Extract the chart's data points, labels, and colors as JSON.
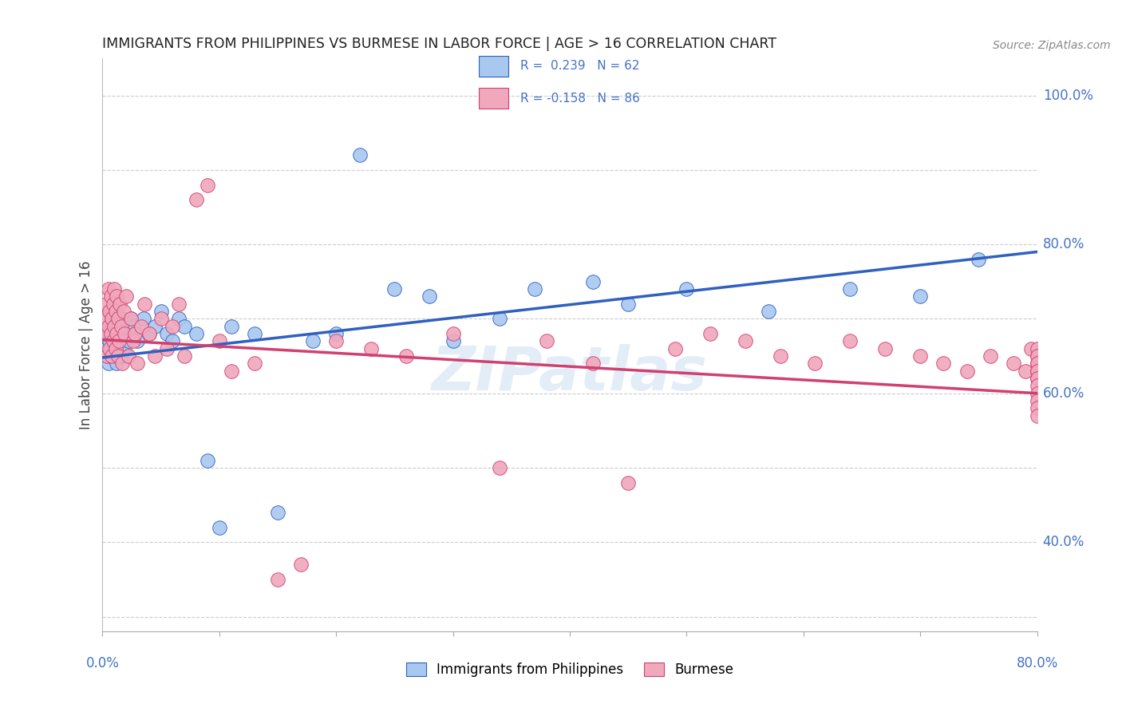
{
  "title": "IMMIGRANTS FROM PHILIPPINES VS BURMESE IN LABOR FORCE | AGE > 16 CORRELATION CHART",
  "source": "Source: ZipAtlas.com",
  "ylabel": "In Labor Force | Age > 16",
  "yticks": [
    "40.0%",
    "60.0%",
    "80.0%",
    "100.0%"
  ],
  "ytick_vals": [
    0.4,
    0.6,
    0.8,
    1.0
  ],
  "xlim": [
    0.0,
    0.8
  ],
  "ylim": [
    0.28,
    1.05
  ],
  "r_philippines": 0.239,
  "n_philippines": 62,
  "r_burmese": -0.158,
  "n_burmese": 86,
  "color_philippines": "#A8C8F0",
  "color_burmese": "#F0A8BC",
  "trendline_color_philippines": "#3060C0",
  "trendline_color_burmese": "#D04070",
  "watermark": "ZIPatlas",
  "trend_ph_x0": 0.0,
  "trend_ph_y0": 0.648,
  "trend_ph_x1": 0.8,
  "trend_ph_y1": 0.79,
  "trend_bu_x0": 0.0,
  "trend_bu_y0": 0.672,
  "trend_bu_x1": 0.8,
  "trend_bu_y1": 0.6,
  "philippines_x": [
    0.002,
    0.003,
    0.004,
    0.005,
    0.005,
    0.006,
    0.006,
    0.007,
    0.007,
    0.008,
    0.008,
    0.009,
    0.009,
    0.01,
    0.01,
    0.011,
    0.011,
    0.012,
    0.012,
    0.013,
    0.013,
    0.014,
    0.015,
    0.016,
    0.017,
    0.018,
    0.019,
    0.02,
    0.022,
    0.024,
    0.026,
    0.028,
    0.03,
    0.035,
    0.04,
    0.045,
    0.05,
    0.055,
    0.06,
    0.065,
    0.07,
    0.08,
    0.09,
    0.1,
    0.11,
    0.13,
    0.15,
    0.18,
    0.2,
    0.22,
    0.25,
    0.28,
    0.3,
    0.34,
    0.37,
    0.42,
    0.45,
    0.5,
    0.57,
    0.64,
    0.7,
    0.75
  ],
  "philippines_y": [
    0.67,
    0.66,
    0.65,
    0.68,
    0.64,
    0.67,
    0.69,
    0.66,
    0.68,
    0.65,
    0.7,
    0.67,
    0.69,
    0.66,
    0.68,
    0.65,
    0.67,
    0.7,
    0.64,
    0.69,
    0.67,
    0.66,
    0.68,
    0.65,
    0.7,
    0.67,
    0.66,
    0.68,
    0.67,
    0.7,
    0.69,
    0.68,
    0.67,
    0.7,
    0.68,
    0.69,
    0.71,
    0.68,
    0.67,
    0.7,
    0.69,
    0.68,
    0.51,
    0.42,
    0.69,
    0.68,
    0.44,
    0.67,
    0.68,
    0.92,
    0.74,
    0.73,
    0.67,
    0.7,
    0.74,
    0.75,
    0.72,
    0.74,
    0.71,
    0.74,
    0.73,
    0.78
  ],
  "burmese_x": [
    0.001,
    0.002,
    0.003,
    0.004,
    0.005,
    0.005,
    0.006,
    0.006,
    0.007,
    0.007,
    0.008,
    0.008,
    0.009,
    0.009,
    0.01,
    0.01,
    0.011,
    0.011,
    0.012,
    0.012,
    0.013,
    0.013,
    0.014,
    0.015,
    0.016,
    0.017,
    0.018,
    0.019,
    0.02,
    0.022,
    0.024,
    0.026,
    0.028,
    0.03,
    0.033,
    0.036,
    0.04,
    0.045,
    0.05,
    0.055,
    0.06,
    0.065,
    0.07,
    0.08,
    0.09,
    0.1,
    0.11,
    0.13,
    0.15,
    0.17,
    0.2,
    0.23,
    0.26,
    0.3,
    0.34,
    0.38,
    0.42,
    0.45,
    0.49,
    0.52,
    0.55,
    0.58,
    0.61,
    0.64,
    0.67,
    0.7,
    0.72,
    0.74,
    0.76,
    0.78,
    0.79,
    0.795,
    0.8,
    0.8,
    0.8,
    0.8,
    0.8,
    0.8,
    0.8,
    0.8,
    0.8,
    0.8,
    0.8,
    0.8,
    0.8,
    0.8
  ],
  "burmese_y": [
    0.7,
    0.68,
    0.72,
    0.65,
    0.69,
    0.74,
    0.66,
    0.71,
    0.68,
    0.73,
    0.65,
    0.7,
    0.67,
    0.72,
    0.69,
    0.74,
    0.66,
    0.71,
    0.68,
    0.73,
    0.65,
    0.7,
    0.67,
    0.72,
    0.69,
    0.64,
    0.71,
    0.68,
    0.73,
    0.65,
    0.7,
    0.67,
    0.68,
    0.64,
    0.69,
    0.72,
    0.68,
    0.65,
    0.7,
    0.66,
    0.69,
    0.72,
    0.65,
    0.86,
    0.88,
    0.67,
    0.63,
    0.64,
    0.35,
    0.37,
    0.67,
    0.66,
    0.65,
    0.68,
    0.5,
    0.67,
    0.64,
    0.48,
    0.66,
    0.68,
    0.67,
    0.65,
    0.64,
    0.67,
    0.66,
    0.65,
    0.64,
    0.63,
    0.65,
    0.64,
    0.63,
    0.66,
    0.65,
    0.64,
    0.63,
    0.62,
    0.66,
    0.65,
    0.64,
    0.63,
    0.62,
    0.61,
    0.6,
    0.59,
    0.58,
    0.57
  ]
}
